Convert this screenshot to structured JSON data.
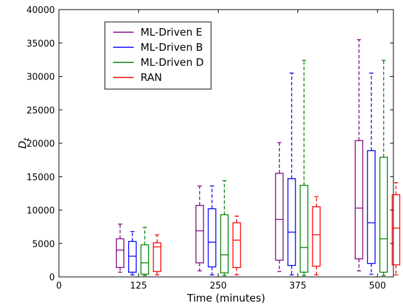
{
  "chart_data": {
    "type": "box",
    "title": "",
    "xlabel": "Time (minutes)",
    "ylabel": "D",
    "ylabel_subscript": "t",
    "xlim": [
      0,
      525
    ],
    "ylim": [
      0,
      40000
    ],
    "xticks": [
      0,
      125,
      250,
      375,
      500
    ],
    "yticks": [
      0,
      5000,
      10000,
      15000,
      20000,
      25000,
      30000,
      35000,
      40000
    ],
    "grid": false,
    "legend_position": "top-left",
    "categories": [
      125,
      250,
      375,
      500
    ],
    "series": [
      {
        "name": "ML-Driven E",
        "color": "#800080",
        "boxes": [
          {
            "whislo": 700,
            "q1": 1400,
            "med": 4000,
            "q3": 5700,
            "whishi": 7900
          },
          {
            "whislo": 900,
            "q1": 2100,
            "med": 6900,
            "q3": 10700,
            "whishi": 13600
          },
          {
            "whislo": 800,
            "q1": 2500,
            "med": 8600,
            "q3": 15500,
            "whishi": 20100
          },
          {
            "whislo": 900,
            "q1": 2700,
            "med": 10300,
            "q3": 20400,
            "whishi": 35500
          }
        ]
      },
      {
        "name": "ML-Driven B",
        "color": "#0000ff",
        "boxes": [
          {
            "whislo": 300,
            "q1": 700,
            "med": 3100,
            "q3": 5300,
            "whishi": 6800
          },
          {
            "whislo": 300,
            "q1": 1500,
            "med": 5200,
            "q3": 10200,
            "whishi": 13600
          },
          {
            "whislo": 300,
            "q1": 1700,
            "med": 6700,
            "q3": 14700,
            "whishi": 30500
          },
          {
            "whislo": 400,
            "q1": 2000,
            "med": 8100,
            "q3": 18900,
            "whishi": 30500
          }
        ]
      },
      {
        "name": "ML-Driven D",
        "color": "#008000",
        "boxes": [
          {
            "whislo": 200,
            "q1": 400,
            "med": 2100,
            "q3": 4800,
            "whishi": 7400
          },
          {
            "whislo": 200,
            "q1": 600,
            "med": 3300,
            "q3": 9300,
            "whishi": 14400
          },
          {
            "whislo": 200,
            "q1": 700,
            "med": 4400,
            "q3": 13700,
            "whishi": 32400
          },
          {
            "whislo": 200,
            "q1": 700,
            "med": 5700,
            "q3": 17900,
            "whishi": 32400
          }
        ]
      },
      {
        "name": "RAN",
        "color": "#ff0000",
        "boxes": [
          {
            "whislo": 300,
            "q1": 800,
            "med": 4500,
            "q3": 5100,
            "whishi": 6300
          },
          {
            "whislo": 300,
            "q1": 1400,
            "med": 5500,
            "q3": 8100,
            "whishi": 9100
          },
          {
            "whislo": 300,
            "q1": 1600,
            "med": 6300,
            "q3": 10500,
            "whishi": 12000
          },
          {
            "whislo": 300,
            "q1": 1800,
            "med": 7300,
            "q3": 12300,
            "whishi": 14100
          }
        ]
      }
    ]
  }
}
